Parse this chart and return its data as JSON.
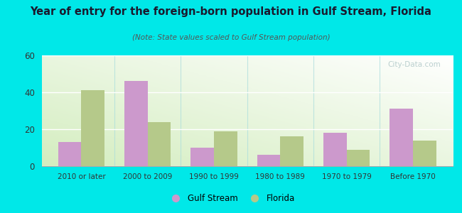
{
  "title": "Year of entry for the foreign-born population in Gulf Stream, Florida",
  "subtitle": "(Note: State values scaled to Gulf Stream population)",
  "categories": [
    "2010 or later",
    "2000 to 2009",
    "1990 to 1999",
    "1980 to 1989",
    "1970 to 1979",
    "Before 1970"
  ],
  "gulf_stream_values": [
    13,
    46,
    10,
    6,
    18,
    31
  ],
  "florida_values": [
    41,
    24,
    19,
    16,
    9,
    14
  ],
  "gulf_stream_color": "#cc99cc",
  "florida_color": "#b5c98a",
  "background_outer": "#00e8e8",
  "ylim": [
    0,
    60
  ],
  "yticks": [
    0,
    20,
    40,
    60
  ],
  "bar_width": 0.35,
  "legend_gulf_stream": "Gulf Stream",
  "legend_florida": "Florida",
  "title_color": "#1a1a2e",
  "subtitle_color": "#555555"
}
